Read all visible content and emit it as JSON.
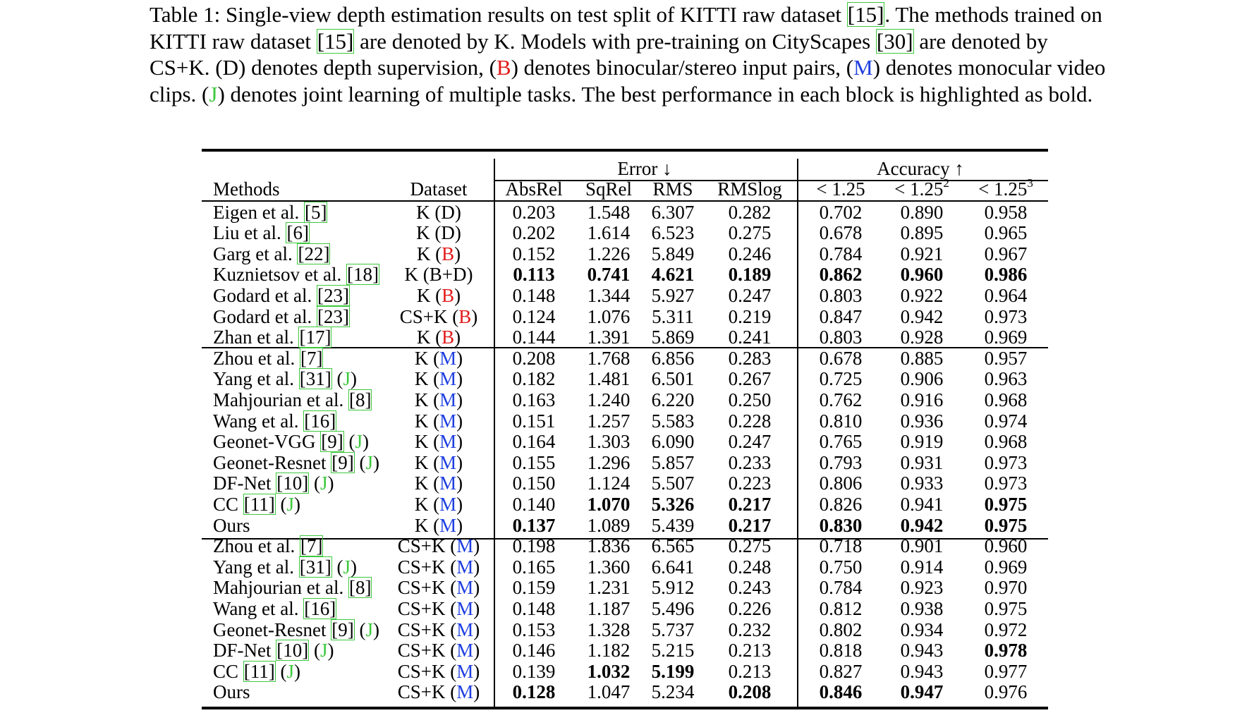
{
  "caption": {
    "p1": "Table 1: Single-view depth estimation results on test split of KITTI raw dataset ",
    "c1": "[15]",
    "p2": ". The methods trained on KITTI raw dataset ",
    "c2": "[15]",
    "p3": " are denoted by K. Models with pre-training on CityScapes ",
    "c3": "[30]",
    "p4": " are denoted by CS+K. (D) denotes depth supervision, (",
    "tB": "B",
    "p5": ") denotes binocular/stereo input pairs, (",
    "tM": "M",
    "p6": ") denotes monocular video clips. (",
    "tJ": "J",
    "p7": ") denotes joint learning of multiple tasks. The best performance in each block is highlighted as bold."
  },
  "table": {
    "group_error": "Error ↓",
    "group_accuracy": "Accuracy ↑",
    "h_methods": "Methods",
    "h_dataset": "Dataset",
    "h_absrel": "AbsRel",
    "h_sqrel": "SqRel",
    "h_rms": "RMS",
    "h_rmslog": "RMSlog",
    "h_a1": "< 1.25",
    "h_a2_base": "< 1.25",
    "h_a2_sup": "2",
    "h_a3_base": "< 1.25",
    "h_a3_sup": "3",
    "rows": [
      {
        "name": "Eigen et al. ",
        "cite": "[5]",
        "joint": "",
        "ds": "K",
        "tag": "D",
        "v": [
          "0.203",
          "1.548",
          "6.307",
          "0.282",
          "0.702",
          "0.890",
          "0.958"
        ],
        "bold": []
      },
      {
        "name": "Liu et al. ",
        "cite": "[6]",
        "joint": "",
        "ds": "K",
        "tag": "D",
        "v": [
          "0.202",
          "1.614",
          "6.523",
          "0.275",
          "0.678",
          "0.895",
          "0.965"
        ],
        "bold": []
      },
      {
        "name": "Garg et al. ",
        "cite": "[22]",
        "joint": "",
        "ds": "K",
        "tag": "B",
        "v": [
          "0.152",
          "1.226",
          "5.849",
          "0.246",
          "0.784",
          "0.921",
          "0.967"
        ],
        "bold": []
      },
      {
        "name": "Kuznietsov et al. ",
        "cite": "[18]",
        "joint": "",
        "ds": "K",
        "tag": "B+D",
        "v": [
          "0.113",
          "0.741",
          "4.621",
          "0.189",
          "0.862",
          "0.960",
          "0.986"
        ],
        "bold": [
          0,
          1,
          2,
          3,
          4,
          5,
          6
        ]
      },
      {
        "name": "Godard et al. ",
        "cite": "[23]",
        "joint": "",
        "ds": "K",
        "tag": "B",
        "v": [
          "0.148",
          "1.344",
          "5.927",
          "0.247",
          "0.803",
          "0.922",
          "0.964"
        ],
        "bold": []
      },
      {
        "name": "Godard et al. ",
        "cite": "[23]",
        "joint": "",
        "ds": "CS+K",
        "tag": "B",
        "v": [
          "0.124",
          "1.076",
          "5.311",
          "0.219",
          "0.847",
          "0.942",
          "0.973"
        ],
        "bold": []
      },
      {
        "name": "Zhan et al. ",
        "cite": "[17]",
        "joint": "",
        "ds": "K",
        "tag": "B",
        "v": [
          "0.144",
          "1.391",
          "5.869",
          "0.241",
          "0.803",
          "0.928",
          "0.969"
        ],
        "bold": []
      },
      {
        "name": "Zhou et al. ",
        "cite": "[7]",
        "joint": "",
        "ds": "K",
        "tag": "M",
        "v": [
          "0.208",
          "1.768",
          "6.856",
          "0.283",
          "0.678",
          "0.885",
          "0.957"
        ],
        "bold": []
      },
      {
        "name": "Yang et al. ",
        "cite": "[31]",
        "joint": "J",
        "ds": "K",
        "tag": "M",
        "v": [
          "0.182",
          "1.481",
          "6.501",
          "0.267",
          "0.725",
          "0.906",
          "0.963"
        ],
        "bold": []
      },
      {
        "name": "Mahjourian et al. ",
        "cite": "[8]",
        "joint": "",
        "ds": "K",
        "tag": "M",
        "v": [
          "0.163",
          "1.240",
          "6.220",
          "0.250",
          "0.762",
          "0.916",
          "0.968"
        ],
        "bold": []
      },
      {
        "name": "Wang et al. ",
        "cite": "[16]",
        "joint": "",
        "ds": "K",
        "tag": "M",
        "v": [
          "0.151",
          "1.257",
          "5.583",
          "0.228",
          "0.810",
          "0.936",
          "0.974"
        ],
        "bold": []
      },
      {
        "name": "Geonet-VGG ",
        "cite": "[9]",
        "joint": "J",
        "ds": "K",
        "tag": "M",
        "v": [
          "0.164",
          "1.303",
          "6.090",
          "0.247",
          "0.765",
          "0.919",
          "0.968"
        ],
        "bold": []
      },
      {
        "name": "Geonet-Resnet ",
        "cite": "[9]",
        "joint": "J",
        "ds": "K",
        "tag": "M",
        "v": [
          "0.155",
          "1.296",
          "5.857",
          "0.233",
          "0.793",
          "0.931",
          "0.973"
        ],
        "bold": []
      },
      {
        "name": "DF-Net ",
        "cite": "[10]",
        "joint": "J",
        "ds": "K",
        "tag": "M",
        "v": [
          "0.150",
          "1.124",
          "5.507",
          "0.223",
          "0.806",
          "0.933",
          "0.973"
        ],
        "bold": []
      },
      {
        "name": "CC ",
        "cite": "[11]",
        "joint": "J",
        "ds": "K",
        "tag": "M",
        "v": [
          "0.140",
          "1.070",
          "5.326",
          "0.217",
          "0.826",
          "0.941",
          "0.975"
        ],
        "bold": [
          1,
          2,
          3,
          6
        ]
      },
      {
        "name": "Ours",
        "cite": "",
        "joint": "",
        "ds": "K",
        "tag": "M",
        "v": [
          "0.137",
          "1.089",
          "5.439",
          "0.217",
          "0.830",
          "0.942",
          "0.975"
        ],
        "bold": [
          0,
          3,
          4,
          5,
          6
        ]
      },
      {
        "name": "Zhou et al. ",
        "cite": "[7]",
        "joint": "",
        "ds": "CS+K",
        "tag": "M",
        "v": [
          "0.198",
          "1.836",
          "6.565",
          "0.275",
          "0.718",
          "0.901",
          "0.960"
        ],
        "bold": []
      },
      {
        "name": "Yang et al. ",
        "cite": "[31]",
        "joint": "J",
        "ds": "CS+K",
        "tag": "M",
        "v": [
          "0.165",
          "1.360",
          "6.641",
          "0.248",
          "0.750",
          "0.914",
          "0.969"
        ],
        "bold": []
      },
      {
        "name": "Mahjourian et al. ",
        "cite": "[8]",
        "joint": "",
        "ds": "CS+K",
        "tag": "M",
        "v": [
          "0.159",
          "1.231",
          "5.912",
          "0.243",
          "0.784",
          "0.923",
          "0.970"
        ],
        "bold": []
      },
      {
        "name": "Wang et al. ",
        "cite": "[16]",
        "joint": "",
        "ds": "CS+K",
        "tag": "M",
        "v": [
          "0.148",
          "1.187",
          "5.496",
          "0.226",
          "0.812",
          "0.938",
          "0.975"
        ],
        "bold": []
      },
      {
        "name": "Geonet-Resnet ",
        "cite": "[9]",
        "joint": "J",
        "ds": "CS+K",
        "tag": "M",
        "v": [
          "0.153",
          "1.328",
          "5.737",
          "0.232",
          "0.802",
          "0.934",
          "0.972"
        ],
        "bold": []
      },
      {
        "name": "DF-Net ",
        "cite": "[10]",
        "joint": "J",
        "ds": "CS+K",
        "tag": "M",
        "v": [
          "0.146",
          "1.182",
          "5.215",
          "0.213",
          "0.818",
          "0.943",
          "0.978"
        ],
        "bold": [
          6
        ]
      },
      {
        "name": "CC ",
        "cite": "[11]",
        "joint": "J",
        "ds": "CS+K",
        "tag": "M",
        "v": [
          "0.139",
          "1.032",
          "5.199",
          "0.213",
          "0.827",
          "0.943",
          "0.977"
        ],
        "bold": [
          1,
          2
        ]
      },
      {
        "name": "Ours",
        "cite": "",
        "joint": "",
        "ds": "CS+K",
        "tag": "M",
        "v": [
          "0.128",
          "1.047",
          "5.234",
          "0.208",
          "0.846",
          "0.947",
          "0.976"
        ],
        "bold": [
          0,
          3,
          4,
          5
        ]
      }
    ]
  },
  "colors": {
    "B": "#e21b1b",
    "M": "#1f3fe0",
    "J": "#3cc83c",
    "D": "#000000",
    "B+D": "#000000"
  }
}
